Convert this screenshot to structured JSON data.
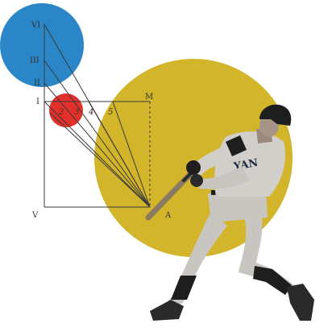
{
  "colors": {
    "background": "#ffffff",
    "blue_circle": "#2a86c6",
    "red_circle": "#e2302b",
    "yellow_circle": "#d2b52a",
    "diagram_ink": "#3a3a3a",
    "player_uniform": "#c9c6c2",
    "player_dark": "#1e1e1e",
    "bat": "#8a7a62"
  },
  "diagram": {
    "roman_labels": [
      "VI",
      "III",
      "II",
      "I",
      "V"
    ],
    "corner_labels": [
      "M",
      "A"
    ],
    "inner_labels": [
      "2",
      "3",
      "4",
      "5"
    ]
  },
  "photo": {
    "subject": "baseball-batter-icon",
    "jersey_text": "YAN"
  }
}
